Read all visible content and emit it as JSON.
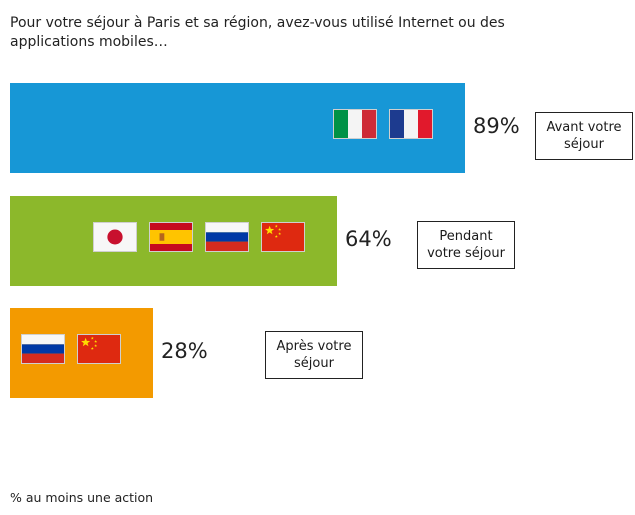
{
  "title": "Pour votre séjour à Paris et sa région, avez-vous utilisé Internet ou des applications mobiles…",
  "footer": "% au moins une action",
  "chart_data": {
    "type": "bar",
    "orientation": "horizontal",
    "xlim": [
      0,
      100
    ],
    "categories": [
      "Avant votre séjour",
      "Pendant votre séjour",
      "Après votre séjour"
    ],
    "values": [
      89,
      64,
      28
    ],
    "labels": [
      "89%",
      "64%",
      "28%"
    ],
    "colors": [
      "#1797d6",
      "#8cb82b",
      "#f39a00"
    ],
    "flags": [
      [
        "italy-flag-icon",
        "france-flag-icon"
      ],
      [
        "japan-flag-icon",
        "spain-flag-icon",
        "russia-flag-icon",
        "china-flag-icon"
      ],
      [
        "russia-flag-icon",
        "china-flag-icon"
      ]
    ]
  }
}
